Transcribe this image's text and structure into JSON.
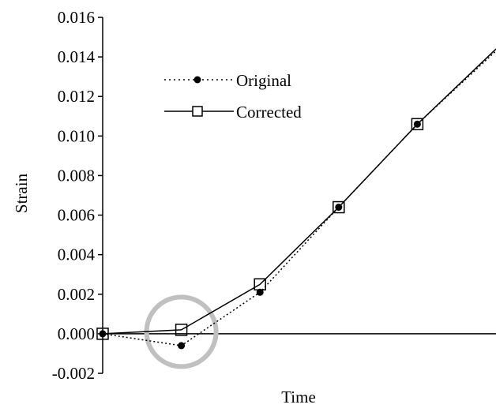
{
  "chart_data": {
    "type": "line",
    "xlabel": "Time",
    "ylabel": "Strain",
    "x": [
      0,
      1,
      2,
      3,
      4,
      5
    ],
    "xlim": [
      0,
      5
    ],
    "ylim": [
      -0.002,
      0.016
    ],
    "yticks": [
      "-0.002",
      "0.000",
      "0.002",
      "0.004",
      "0.006",
      "0.008",
      "0.010",
      "0.012",
      "0.014",
      "0.016"
    ],
    "grid": false,
    "legend_position": "top-left",
    "series": [
      {
        "name": "Original",
        "style": "dotted",
        "marker": "filled-circle",
        "color": "#000000",
        "values": [
          0.0,
          -0.0006,
          0.0021,
          0.0064,
          0.0106,
          0.0143
        ]
      },
      {
        "name": "Corrected",
        "style": "solid",
        "marker": "open-square",
        "color": "#000000",
        "values": [
          0.0,
          0.0002,
          0.0025,
          0.0064,
          0.0106,
          0.0144
        ]
      }
    ],
    "annotations": [
      {
        "type": "circle-highlight",
        "x": 1,
        "y": 0.0001,
        "color": "#c0c0c0"
      }
    ]
  }
}
